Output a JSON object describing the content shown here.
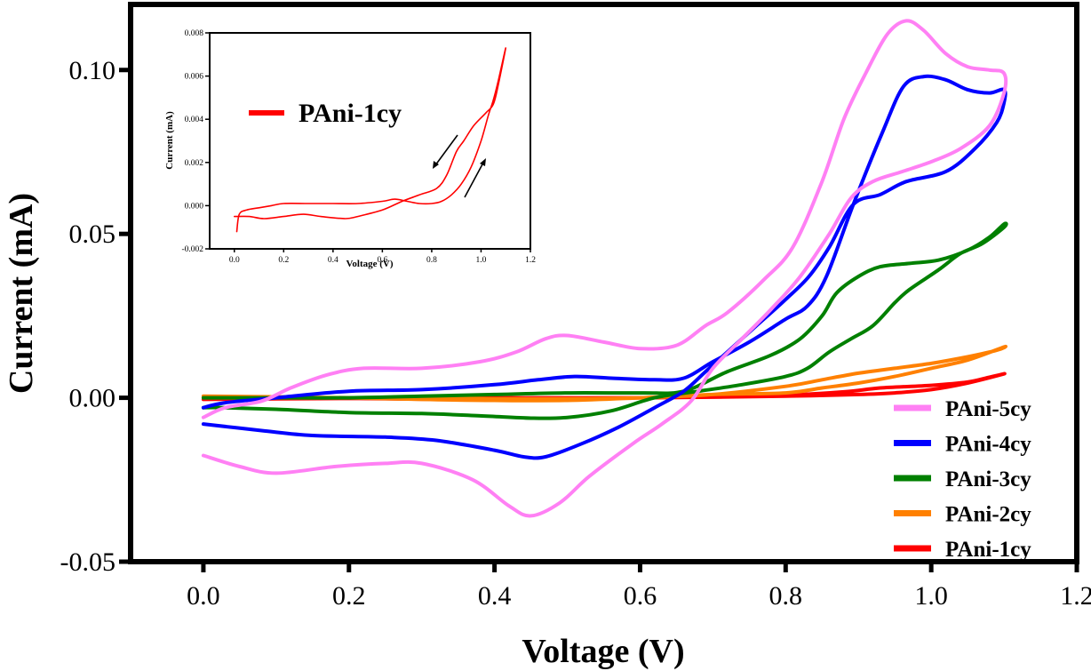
{
  "chart_data": [
    {
      "id": "main",
      "type": "line",
      "title": "",
      "xlabel": "Voltage (V)",
      "ylabel": "Current (mA)",
      "xlim": [
        -0.1,
        1.2
      ],
      "ylim": [
        -0.05,
        0.12
      ],
      "xticks": [
        0.0,
        0.2,
        0.4,
        0.6,
        0.8,
        1.0,
        1.2
      ],
      "xtick_labels": [
        "0.0",
        "0.2",
        "0.4",
        "0.6",
        "0.8",
        "1.0",
        "1.2"
      ],
      "yticks": [
        -0.05,
        0.0,
        0.05,
        0.1
      ],
      "ytick_labels": [
        "-0.05",
        "0.00",
        "0.05",
        "0.10"
      ],
      "grid": false,
      "legend_position": "bottom-right",
      "series": [
        {
          "name": "PAni-5cy",
          "color": "#ff80f4",
          "points": [
            [
              0.0,
              -0.006
            ],
            [
              0.03,
              -0.003
            ],
            [
              0.08,
              -0.001
            ],
            [
              0.12,
              0.003
            ],
            [
              0.17,
              0.007
            ],
            [
              0.22,
              0.009
            ],
            [
              0.3,
              0.009
            ],
            [
              0.38,
              0.011
            ],
            [
              0.43,
              0.014
            ],
            [
              0.47,
              0.018
            ],
            [
              0.5,
              0.019
            ],
            [
              0.55,
              0.017
            ],
            [
              0.6,
              0.015
            ],
            [
              0.65,
              0.016
            ],
            [
              0.69,
              0.022
            ],
            [
              0.72,
              0.026
            ],
            [
              0.77,
              0.036
            ],
            [
              0.81,
              0.046
            ],
            [
              0.85,
              0.066
            ],
            [
              0.88,
              0.085
            ],
            [
              0.91,
              0.099
            ],
            [
              0.94,
              0.111
            ],
            [
              0.966,
              0.115
            ],
            [
              0.99,
              0.112
            ],
            [
              1.02,
              0.105
            ],
            [
              1.05,
              0.101
            ],
            [
              1.08,
              0.1
            ],
            [
              1.1,
              0.099
            ],
            [
              1.1,
              0.093
            ],
            [
              1.08,
              0.083
            ],
            [
              1.04,
              0.076
            ],
            [
              1.0,
              0.072
            ],
            [
              0.96,
              0.069
            ],
            [
              0.92,
              0.066
            ],
            [
              0.89,
              0.061
            ],
            [
              0.86,
              0.05
            ],
            [
              0.82,
              0.037
            ],
            [
              0.78,
              0.027
            ],
            [
              0.74,
              0.018
            ],
            [
              0.7,
              0.009
            ],
            [
              0.67,
              -0.001
            ],
            [
              0.63,
              -0.008
            ],
            [
              0.59,
              -0.014
            ],
            [
              0.53,
              -0.024
            ],
            [
              0.49,
              -0.032
            ],
            [
              0.45,
              -0.036
            ],
            [
              0.42,
              -0.033
            ],
            [
              0.37,
              -0.025
            ],
            [
              0.3,
              -0.02
            ],
            [
              0.25,
              -0.02
            ],
            [
              0.18,
              -0.021
            ],
            [
              0.1,
              -0.023
            ],
            [
              0.05,
              -0.021
            ],
            [
              0.0,
              -0.0176
            ]
          ]
        },
        {
          "name": "PAni-4cy",
          "color": "#0000ff",
          "points": [
            [
              0.0,
              -0.003
            ],
            [
              0.03,
              -0.0015
            ],
            [
              0.1,
              0.0
            ],
            [
              0.2,
              0.002
            ],
            [
              0.3,
              0.0025
            ],
            [
              0.4,
              0.004
            ],
            [
              0.46,
              0.0055
            ],
            [
              0.51,
              0.0065
            ],
            [
              0.56,
              0.006
            ],
            [
              0.62,
              0.0055
            ],
            [
              0.66,
              0.006
            ],
            [
              0.7,
              0.011
            ],
            [
              0.75,
              0.017
            ],
            [
              0.8,
              0.024
            ],
            [
              0.83,
              0.028
            ],
            [
              0.856,
              0.037
            ],
            [
              0.893,
              0.059
            ],
            [
              0.933,
              0.081
            ],
            [
              0.962,
              0.095
            ],
            [
              0.99,
              0.098
            ],
            [
              1.02,
              0.097
            ],
            [
              1.05,
              0.094
            ],
            [
              1.08,
              0.093
            ],
            [
              1.1,
              0.094
            ],
            [
              1.1,
              0.09
            ],
            [
              1.09,
              0.084
            ],
            [
              1.06,
              0.076
            ],
            [
              1.02,
              0.069
            ],
            [
              0.966,
              0.066
            ],
            [
              0.93,
              0.062
            ],
            [
              0.893,
              0.059
            ],
            [
              0.86,
              0.046
            ],
            [
              0.832,
              0.037
            ],
            [
              0.8,
              0.03
            ],
            [
              0.76,
              0.022
            ],
            [
              0.72,
              0.014
            ],
            [
              0.69,
              0.008
            ],
            [
              0.66,
              0.002
            ],
            [
              0.62,
              -0.003
            ],
            [
              0.57,
              -0.009
            ],
            [
              0.52,
              -0.014
            ],
            [
              0.47,
              -0.018
            ],
            [
              0.44,
              -0.018
            ],
            [
              0.4,
              -0.016
            ],
            [
              0.32,
              -0.013
            ],
            [
              0.25,
              -0.012
            ],
            [
              0.15,
              -0.0115
            ],
            [
              0.08,
              -0.01
            ],
            [
              0.0,
              -0.008
            ]
          ]
        },
        {
          "name": "PAni-3cy",
          "color": "#008000",
          "points": [
            [
              0.0,
              0.0
            ],
            [
              0.1,
              0.0
            ],
            [
              0.2,
              0.0
            ],
            [
              0.3,
              0.0005
            ],
            [
              0.4,
              0.001
            ],
            [
              0.5,
              0.0015
            ],
            [
              0.6,
              0.0015
            ],
            [
              0.66,
              0.002
            ],
            [
              0.72,
              0.008
            ],
            [
              0.78,
              0.013
            ],
            [
              0.82,
              0.018
            ],
            [
              0.85,
              0.025
            ],
            [
              0.87,
              0.032
            ],
            [
              0.9,
              0.037
            ],
            [
              0.93,
              0.04
            ],
            [
              0.97,
              0.041
            ],
            [
              1.01,
              0.042
            ],
            [
              1.05,
              0.045
            ],
            [
              1.08,
              0.049
            ],
            [
              1.1,
              0.053
            ],
            [
              1.1,
              0.052
            ],
            [
              1.07,
              0.047
            ],
            [
              1.04,
              0.044
            ],
            [
              1.01,
              0.039
            ],
            [
              0.97,
              0.033
            ],
            [
              0.95,
              0.029
            ],
            [
              0.92,
              0.022
            ],
            [
              0.89,
              0.018
            ],
            [
              0.86,
              0.014
            ],
            [
              0.83,
              0.009
            ],
            [
              0.8,
              0.0065
            ],
            [
              0.74,
              0.004
            ],
            [
              0.68,
              0.002
            ],
            [
              0.62,
              0.0
            ],
            [
              0.56,
              -0.004
            ],
            [
              0.5,
              -0.006
            ],
            [
              0.45,
              -0.0062
            ],
            [
              0.38,
              -0.0055
            ],
            [
              0.3,
              -0.0048
            ],
            [
              0.2,
              -0.0045
            ],
            [
              0.1,
              -0.0035
            ],
            [
              0.03,
              -0.003
            ],
            [
              0.0,
              -0.003
            ]
          ]
        },
        {
          "name": "PAni-2cy",
          "color": "#ff8000",
          "points": [
            [
              0.0,
              0.0005
            ],
            [
              0.1,
              0.0003
            ],
            [
              0.2,
              0.0
            ],
            [
              0.3,
              -0.0005
            ],
            [
              0.4,
              -0.0008
            ],
            [
              0.5,
              -0.0008
            ],
            [
              0.6,
              0.0
            ],
            [
              0.7,
              0.001
            ],
            [
              0.8,
              0.0015
            ],
            [
              0.85,
              0.003
            ],
            [
              0.9,
              0.0045
            ],
            [
              0.95,
              0.0065
            ],
            [
              1.0,
              0.009
            ],
            [
              1.05,
              0.0115
            ],
            [
              1.1,
              0.0155
            ],
            [
              1.09,
              0.0145
            ],
            [
              1.05,
              0.0125
            ],
            [
              1.0,
              0.0105
            ],
            [
              0.95,
              0.009
            ],
            [
              0.9,
              0.0075
            ],
            [
              0.85,
              0.0055
            ],
            [
              0.8,
              0.0035
            ],
            [
              0.7,
              0.001
            ],
            [
              0.6,
              0.0
            ],
            [
              0.5,
              -0.0003
            ],
            [
              0.4,
              -0.0003
            ],
            [
              0.3,
              0.0
            ],
            [
              0.2,
              0.0
            ],
            [
              0.1,
              0.0
            ],
            [
              0.0,
              0.0
            ]
          ]
        },
        {
          "name": "PAni-1cy",
          "color": "#ff0000",
          "points": [
            [
              0.0,
              -0.0005
            ],
            [
              0.1,
              -0.0003
            ],
            [
              0.2,
              -0.0002
            ],
            [
              0.3,
              -0.0004
            ],
            [
              0.4,
              -0.0005
            ],
            [
              0.5,
              -0.0005
            ],
            [
              0.6,
              0.0
            ],
            [
              0.7,
              0.0002
            ],
            [
              0.8,
              0.0005
            ],
            [
              0.9,
              0.001
            ],
            [
              0.95,
              0.0015
            ],
            [
              1.0,
              0.0025
            ],
            [
              1.05,
              0.0045
            ],
            [
              1.1,
              0.0073
            ],
            [
              1.08,
              0.0063
            ],
            [
              1.05,
              0.0048
            ],
            [
              1.0,
              0.0038
            ],
            [
              0.93,
              0.003
            ],
            [
              0.88,
              0.0018
            ],
            [
              0.8,
              0.0008
            ],
            [
              0.7,
              0.0002
            ],
            [
              0.6,
              0.0
            ],
            [
              0.5,
              0.0
            ],
            [
              0.4,
              0.0
            ],
            [
              0.3,
              0.0
            ],
            [
              0.2,
              0.0
            ],
            [
              0.1,
              -0.0001
            ],
            [
              0.0,
              -0.0005
            ]
          ]
        }
      ]
    },
    {
      "id": "inset",
      "type": "line",
      "title": "",
      "xlabel": "Voltage (V)",
      "ylabel": "Current (mA)",
      "xlim": [
        -0.1,
        1.2
      ],
      "ylim": [
        -0.002,
        0.008
      ],
      "xticks": [
        0.0,
        0.2,
        0.4,
        0.6,
        0.8,
        1.0,
        1.2
      ],
      "xtick_labels": [
        "0.0",
        "0.2",
        "0.4",
        "0.6",
        "0.8",
        "1.0",
        "1.2"
      ],
      "yticks": [
        -0.002,
        0.0,
        0.002,
        0.004,
        0.006,
        0.008
      ],
      "ytick_labels": [
        "-0.002",
        "0.000",
        "0.002",
        "0.004",
        "0.006",
        "0.008"
      ],
      "grid": false,
      "legend_position": "top-left",
      "annotations": [
        {
          "type": "arrow",
          "direction": "down-left",
          "label": "reverse scan"
        },
        {
          "type": "arrow",
          "direction": "up-right",
          "label": "forward scan"
        }
      ],
      "series": [
        {
          "name": "PAni-1cy",
          "color": "#ff0000",
          "points": [
            [
              0.01,
              -0.0012
            ],
            [
              0.02,
              -0.0004
            ],
            [
              0.05,
              -0.0002
            ],
            [
              0.1,
              -0.0001
            ],
            [
              0.15,
              0.0
            ],
            [
              0.2,
              0.0001
            ],
            [
              0.3,
              0.0001
            ],
            [
              0.4,
              0.0001
            ],
            [
              0.5,
              0.0001
            ],
            [
              0.6,
              0.0002
            ],
            [
              0.65,
              0.0003
            ],
            [
              0.7,
              0.0002
            ],
            [
              0.75,
              0.0001
            ],
            [
              0.8,
              0.0001
            ],
            [
              0.84,
              0.0002
            ],
            [
              0.88,
              0.0005
            ],
            [
              0.92,
              0.001
            ],
            [
              0.96,
              0.0018
            ],
            [
              1.0,
              0.003
            ],
            [
              1.03,
              0.0042
            ],
            [
              1.05,
              0.0049
            ],
            [
              1.07,
              0.0058
            ],
            [
              1.1,
              0.0073
            ],
            [
              1.07,
              0.0056
            ],
            [
              1.05,
              0.0047
            ],
            [
              1.02,
              0.0043
            ],
            [
              0.97,
              0.0037
            ],
            [
              0.93,
              0.003
            ],
            [
              0.9,
              0.0025
            ],
            [
              0.86,
              0.0014
            ],
            [
              0.82,
              0.0008
            ],
            [
              0.75,
              0.0005
            ],
            [
              0.68,
              0.0002
            ],
            [
              0.6,
              -0.0002
            ],
            [
              0.5,
              -0.0005
            ],
            [
              0.45,
              -0.0006
            ],
            [
              0.35,
              -0.0005
            ],
            [
              0.28,
              -0.0004
            ],
            [
              0.2,
              -0.0005
            ],
            [
              0.12,
              -0.0006
            ],
            [
              0.06,
              -0.0005
            ],
            [
              0.0,
              -0.0005
            ]
          ]
        }
      ]
    }
  ]
}
